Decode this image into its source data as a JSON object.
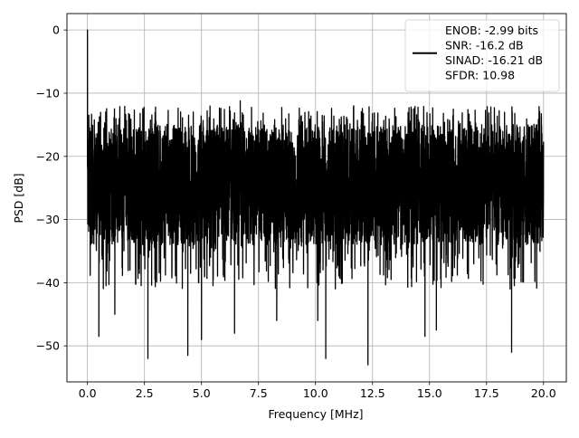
{
  "chart_data": {
    "type": "line",
    "title": "",
    "xlabel": "Frequency [MHz]",
    "ylabel": "PSD [dB]",
    "xlim": [
      -0.9,
      21.0
    ],
    "ylim": [
      -55.7,
      2.6
    ],
    "grid": true,
    "x_ticks": [
      {
        "value": 0.0,
        "label": "0.0"
      },
      {
        "value": 2.5,
        "label": "2.5"
      },
      {
        "value": 5.0,
        "label": "5.0"
      },
      {
        "value": 7.5,
        "label": "7.5"
      },
      {
        "value": 10.0,
        "label": "10.0"
      },
      {
        "value": 12.5,
        "label": "12.5"
      },
      {
        "value": 15.0,
        "label": "15.0"
      },
      {
        "value": 17.5,
        "label": "17.5"
      },
      {
        "value": 20.0,
        "label": "20.0"
      }
    ],
    "y_ticks": [
      {
        "value": 0,
        "label": "0"
      },
      {
        "value": -10,
        "label": "−10"
      },
      {
        "value": -20,
        "label": "−20"
      },
      {
        "value": -30,
        "label": "−30"
      },
      {
        "value": -40,
        "label": "−40"
      },
      {
        "value": -50,
        "label": "−50"
      }
    ],
    "legend": {
      "placement": "top-right",
      "lines": [
        "ENOB: -2.99 bits",
        "SNR: -16.2 dB",
        "SINAD: -16.21 dB",
        "SFDR: 10.98"
      ]
    },
    "series": [
      {
        "color": "#000000",
        "x_range": [
          0.0,
          20.0
        ],
        "noise_band": [
          -34.0,
          -15.0
        ],
        "x": [
          0.0,
          0.06,
          0.5,
          1.2,
          2.65,
          4.4,
          5.0,
          6.45,
          6.7,
          8.3,
          10.1,
          10.45,
          12.3,
          14.8,
          15.3,
          17.0,
          18.6,
          20.0
        ],
        "y": [
          0.0,
          -13.5,
          -48.5,
          -45.0,
          -52.0,
          -51.5,
          -49.0,
          -48.0,
          -11.2,
          -46.0,
          -46.0,
          -52.0,
          -53.0,
          -48.5,
          -47.5,
          -12.7,
          -51.0,
          -19.5
        ]
      }
    ]
  }
}
